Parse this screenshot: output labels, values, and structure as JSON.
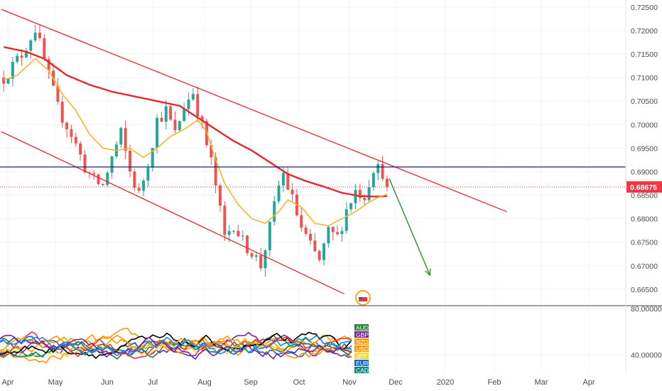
{
  "colors": {
    "background": "#ffffff",
    "grid": "#f0f3fa",
    "axis_text": "#4a4a4a",
    "up_candle": "#26a69a",
    "down_candle": "#ef5350",
    "ma_long": "#e8262b",
    "ma_short": "#f5b52a",
    "channel": "#e8262b",
    "horizontal_level": "#1a237e",
    "price_tag": "#f23645",
    "forecast_arrow": "#1b8a1b",
    "separator": "#434651"
  },
  "chart_data": [
    {
      "type": "candlestick",
      "x_ticks": [
        "Apr",
        "May",
        "Jun",
        "Jul",
        "Aug",
        "Sep",
        "Oct",
        "Nov",
        "Dec",
        "2020",
        "Feb",
        "Mar",
        "Apr"
      ],
      "y_ticks": [
        "0.72500",
        "0.72000",
        "0.71500",
        "0.71000",
        "0.70500",
        "0.70000",
        "0.69500",
        "0.69000",
        "0.68500",
        "0.68000",
        "0.67500",
        "0.67000",
        "0.66500"
      ],
      "ylim": [
        0.6615,
        0.7265
      ],
      "grid": true,
      "last_price_label": "0.68675",
      "last_price": 0.68675,
      "horizontal_level": 0.691,
      "trend_path": [
        [
          0,
          0.71
        ],
        [
          4,
          0.715
        ],
        [
          7,
          0.7205
        ],
        [
          9,
          0.7135
        ],
        [
          12,
          0.7035
        ],
        [
          15,
          0.698
        ],
        [
          18,
          0.691
        ],
        [
          20,
          0.688
        ],
        [
          22,
          0.687
        ],
        [
          24,
          0.693
        ],
        [
          26,
          0.698
        ],
        [
          28,
          0.69
        ],
        [
          30,
          0.685
        ],
        [
          32,
          0.692
        ],
        [
          34,
          0.701
        ],
        [
          36,
          0.703
        ],
        [
          38,
          0.698
        ],
        [
          40,
          0.704
        ],
        [
          42,
          0.707
        ],
        [
          44,
          0.6995
        ],
        [
          46,
          0.692
        ],
        [
          47,
          0.687
        ],
        [
          49,
          0.676
        ],
        [
          51,
          0.679
        ],
        [
          53,
          0.675
        ],
        [
          55,
          0.673
        ],
        [
          57,
          0.67
        ],
        [
          59,
          0.678
        ],
        [
          61,
          0.687
        ],
        [
          62,
          0.6895
        ],
        [
          64,
          0.684
        ],
        [
          66,
          0.678
        ],
        [
          68,
          0.674
        ],
        [
          70,
          0.671
        ],
        [
          72,
          0.677
        ],
        [
          74,
          0.676
        ],
        [
          76,
          0.682
        ],
        [
          78,
          0.686
        ],
        [
          80,
          0.685
        ],
        [
          82,
          0.691
        ],
        [
          84,
          0.69
        ],
        [
          85,
          0.687
        ]
      ],
      "ma_long_path": [
        [
          0,
          0.7165
        ],
        [
          5,
          0.7155
        ],
        [
          9,
          0.714
        ],
        [
          14,
          0.7105
        ],
        [
          19,
          0.7085
        ],
        [
          24,
          0.707
        ],
        [
          29,
          0.706
        ],
        [
          34,
          0.705
        ],
        [
          39,
          0.704
        ],
        [
          43,
          0.7015
        ],
        [
          47,
          0.699
        ],
        [
          51,
          0.6965
        ],
        [
          55,
          0.6945
        ],
        [
          59,
          0.692
        ],
        [
          63,
          0.6895
        ],
        [
          67,
          0.688
        ],
        [
          71,
          0.6868
        ],
        [
          75,
          0.6855
        ],
        [
          79,
          0.6848
        ],
        [
          83,
          0.6847
        ],
        [
          85,
          0.6848
        ]
      ],
      "ma_short_path": [
        [
          0,
          0.7095
        ],
        [
          3,
          0.7105
        ],
        [
          7,
          0.714
        ],
        [
          10,
          0.7115
        ],
        [
          13,
          0.7065
        ],
        [
          16,
          0.703
        ],
        [
          19,
          0.698
        ],
        [
          22,
          0.695
        ],
        [
          25,
          0.6945
        ],
        [
          28,
          0.695
        ],
        [
          31,
          0.693
        ],
        [
          34,
          0.695
        ],
        [
          37,
          0.6975
        ],
        [
          40,
          0.699
        ],
        [
          43,
          0.701
        ],
        [
          45,
          0.6985
        ],
        [
          47,
          0.6925
        ],
        [
          49,
          0.6875
        ],
        [
          52,
          0.683
        ],
        [
          55,
          0.68
        ],
        [
          58,
          0.679
        ],
        [
          61,
          0.6815
        ],
        [
          63,
          0.684
        ],
        [
          66,
          0.6825
        ],
        [
          69,
          0.679
        ],
        [
          72,
          0.6785
        ],
        [
          75,
          0.68
        ],
        [
          78,
          0.6815
        ],
        [
          81,
          0.6835
        ],
        [
          83,
          0.6845
        ],
        [
          85,
          0.6852
        ]
      ],
      "channel_upper": [
        [
          0,
          0.7245
        ],
        [
          112,
          0.6815
        ]
      ],
      "channel_lower": [
        [
          0,
          0.6985
        ],
        [
          76,
          0.664
        ]
      ],
      "forecast_arrow": [
        [
          86,
          0.6885
        ],
        [
          95,
          0.668
        ]
      ]
    },
    {
      "type": "line",
      "y_ticks": [
        "80.00000",
        "40.00000"
      ],
      "ylim": [
        25,
        82
      ],
      "grid": true,
      "series": [
        {
          "name": "AUD",
          "color": "#2e7d32"
        },
        {
          "name": "GBP",
          "color": "#7b1fa2"
        },
        {
          "name": "NZD",
          "color": "#ff9800"
        },
        {
          "name": "USD",
          "color": "#ff9800"
        },
        {
          "name": "JPY",
          "color": "#fdd835"
        },
        {
          "name": "EUR",
          "color": "#1565c0"
        },
        {
          "name": "CAD",
          "color": "#00897b"
        }
      ],
      "extra_series_colors": [
        "#000000",
        "#e53935",
        "#ff9800",
        "#7b1fa2",
        "#1e88e5"
      ]
    }
  ]
}
